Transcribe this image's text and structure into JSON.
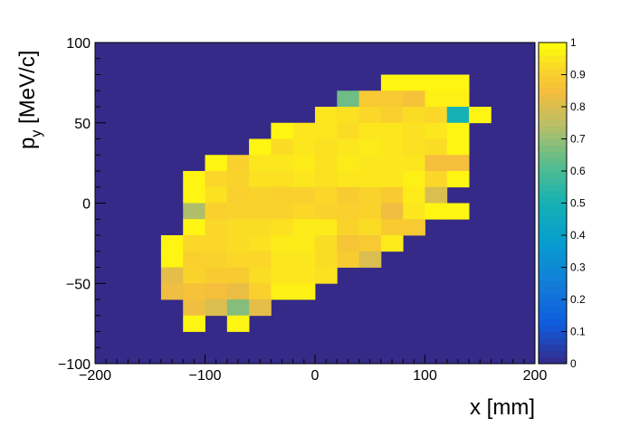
{
  "chart_data": {
    "type": "heatmap",
    "xlabel": "x [mm]",
    "ylabel_main": "p",
    "ylabel_sub": "y",
    "ylabel_rest": " [MeV/c]",
    "xlim": [
      -200,
      200
    ],
    "ylim": [
      -100,
      100
    ],
    "x_ticks": [
      -200,
      -100,
      0,
      100,
      200
    ],
    "x_tick_labels": [
      "−200",
      "−100",
      "0",
      "100",
      "200"
    ],
    "y_ticks": [
      -100,
      -50,
      0,
      50,
      100
    ],
    "y_tick_labels": [
      "−100",
      "−50",
      "0",
      "50",
      "100"
    ],
    "zlim": [
      0,
      1
    ],
    "z_ticks": [
      0,
      0.1,
      0.2,
      0.3,
      0.4,
      0.5,
      0.6,
      0.7,
      0.8,
      0.9,
      1
    ],
    "z_tick_labels": [
      "0",
      "0.1",
      "0.2",
      "0.3",
      "0.4",
      "0.5",
      "0.6",
      "0.7",
      "0.8",
      "0.9",
      "1"
    ],
    "bin_width_x": 20,
    "bin_width_y": 10,
    "background_value": 0,
    "colors": {
      "background": "#352a87",
      "frame": "#000000"
    },
    "cells": [
      {
        "x": 60,
        "y": 70,
        "v": 0.98
      },
      {
        "x": 80,
        "y": 70,
        "v": 0.98
      },
      {
        "x": 100,
        "y": 70,
        "v": 0.98
      },
      {
        "x": 120,
        "y": 70,
        "v": 0.98
      },
      {
        "x": 20,
        "y": 60,
        "v": 0.65
      },
      {
        "x": 40,
        "y": 60,
        "v": 0.88
      },
      {
        "x": 60,
        "y": 60,
        "v": 0.88
      },
      {
        "x": 80,
        "y": 60,
        "v": 0.86
      },
      {
        "x": 100,
        "y": 60,
        "v": 0.97
      },
      {
        "x": 120,
        "y": 60,
        "v": 0.97
      },
      {
        "x": 0,
        "y": 50,
        "v": 0.95
      },
      {
        "x": 20,
        "y": 50,
        "v": 0.94
      },
      {
        "x": 40,
        "y": 50,
        "v": 0.92
      },
      {
        "x": 60,
        "y": 50,
        "v": 0.9
      },
      {
        "x": 80,
        "y": 50,
        "v": 0.93
      },
      {
        "x": 100,
        "y": 50,
        "v": 0.92
      },
      {
        "x": 120,
        "y": 50,
        "v": 0.5
      },
      {
        "x": 140,
        "y": 50,
        "v": 0.98
      },
      {
        "x": -40,
        "y": 40,
        "v": 0.98
      },
      {
        "x": -20,
        "y": 40,
        "v": 0.95
      },
      {
        "x": 0,
        "y": 40,
        "v": 0.95
      },
      {
        "x": 20,
        "y": 40,
        "v": 0.93
      },
      {
        "x": 40,
        "y": 40,
        "v": 0.95
      },
      {
        "x": 60,
        "y": 40,
        "v": 0.95
      },
      {
        "x": 80,
        "y": 40,
        "v": 0.94
      },
      {
        "x": 100,
        "y": 40,
        "v": 0.95
      },
      {
        "x": 120,
        "y": 40,
        "v": 0.98
      },
      {
        "x": -60,
        "y": 30,
        "v": 0.98
      },
      {
        "x": -40,
        "y": 30,
        "v": 0.93
      },
      {
        "x": -20,
        "y": 30,
        "v": 0.95
      },
      {
        "x": 0,
        "y": 30,
        "v": 0.94
      },
      {
        "x": 20,
        "y": 30,
        "v": 0.95
      },
      {
        "x": 40,
        "y": 30,
        "v": 0.96
      },
      {
        "x": 60,
        "y": 30,
        "v": 0.95
      },
      {
        "x": 80,
        "y": 30,
        "v": 0.94
      },
      {
        "x": 100,
        "y": 30,
        "v": 0.93
      },
      {
        "x": 120,
        "y": 30,
        "v": 0.98
      },
      {
        "x": -100,
        "y": 20,
        "v": 0.98
      },
      {
        "x": -80,
        "y": 20,
        "v": 0.9
      },
      {
        "x": -60,
        "y": 20,
        "v": 0.95
      },
      {
        "x": -40,
        "y": 20,
        "v": 0.95
      },
      {
        "x": -20,
        "y": 20,
        "v": 0.96
      },
      {
        "x": 0,
        "y": 20,
        "v": 0.94
      },
      {
        "x": 20,
        "y": 20,
        "v": 0.96
      },
      {
        "x": 40,
        "y": 20,
        "v": 0.95
      },
      {
        "x": 60,
        "y": 20,
        "v": 0.95
      },
      {
        "x": 80,
        "y": 20,
        "v": 0.95
      },
      {
        "x": 100,
        "y": 20,
        "v": 0.85
      },
      {
        "x": 120,
        "y": 20,
        "v": 0.85
      },
      {
        "x": -120,
        "y": 10,
        "v": 0.98
      },
      {
        "x": -100,
        "y": 10,
        "v": 0.92
      },
      {
        "x": -80,
        "y": 10,
        "v": 0.91
      },
      {
        "x": -60,
        "y": 10,
        "v": 0.94
      },
      {
        "x": -40,
        "y": 10,
        "v": 0.94
      },
      {
        "x": -20,
        "y": 10,
        "v": 0.95
      },
      {
        "x": 0,
        "y": 10,
        "v": 0.94
      },
      {
        "x": 20,
        "y": 10,
        "v": 0.95
      },
      {
        "x": 40,
        "y": 10,
        "v": 0.95
      },
      {
        "x": 60,
        "y": 10,
        "v": 0.95
      },
      {
        "x": 80,
        "y": 10,
        "v": 0.97
      },
      {
        "x": 100,
        "y": 10,
        "v": 0.92
      },
      {
        "x": 120,
        "y": 10,
        "v": 0.98
      },
      {
        "x": -120,
        "y": 0,
        "v": 0.98
      },
      {
        "x": -100,
        "y": 0,
        "v": 0.94
      },
      {
        "x": -80,
        "y": 0,
        "v": 0.9
      },
      {
        "x": -60,
        "y": 0,
        "v": 0.91
      },
      {
        "x": -40,
        "y": 0,
        "v": 0.9
      },
      {
        "x": -20,
        "y": 0,
        "v": 0.9
      },
      {
        "x": 0,
        "y": 0,
        "v": 0.92
      },
      {
        "x": 20,
        "y": 0,
        "v": 0.89
      },
      {
        "x": 40,
        "y": 0,
        "v": 0.91
      },
      {
        "x": 60,
        "y": 0,
        "v": 0.89
      },
      {
        "x": 80,
        "y": 0,
        "v": 0.96
      },
      {
        "x": 100,
        "y": 0,
        "v": 0.8
      },
      {
        "x": -120,
        "y": -10,
        "v": 0.73
      },
      {
        "x": -100,
        "y": -10,
        "v": 0.9
      },
      {
        "x": -80,
        "y": -10,
        "v": 0.91
      },
      {
        "x": -60,
        "y": -10,
        "v": 0.91
      },
      {
        "x": -40,
        "y": -10,
        "v": 0.91
      },
      {
        "x": -20,
        "y": -10,
        "v": 0.92
      },
      {
        "x": 0,
        "y": -10,
        "v": 0.91
      },
      {
        "x": 20,
        "y": -10,
        "v": 0.9
      },
      {
        "x": 40,
        "y": -10,
        "v": 0.91
      },
      {
        "x": 60,
        "y": -10,
        "v": 0.84
      },
      {
        "x": 80,
        "y": -10,
        "v": 0.95
      },
      {
        "x": 100,
        "y": -10,
        "v": 0.98
      },
      {
        "x": 120,
        "y": -10,
        "v": 0.98
      },
      {
        "x": -120,
        "y": -20,
        "v": 0.98
      },
      {
        "x": -100,
        "y": -20,
        "v": 0.92
      },
      {
        "x": -80,
        "y": -20,
        "v": 0.93
      },
      {
        "x": -60,
        "y": -20,
        "v": 0.93
      },
      {
        "x": -40,
        "y": -20,
        "v": 0.94
      },
      {
        "x": -20,
        "y": -20,
        "v": 0.96
      },
      {
        "x": 0,
        "y": -20,
        "v": 0.96
      },
      {
        "x": 20,
        "y": -20,
        "v": 0.91
      },
      {
        "x": 40,
        "y": -20,
        "v": 0.93
      },
      {
        "x": 60,
        "y": -20,
        "v": 0.89
      },
      {
        "x": 80,
        "y": -20,
        "v": 0.88
      },
      {
        "x": -140,
        "y": -30,
        "v": 0.98
      },
      {
        "x": -120,
        "y": -30,
        "v": 0.92
      },
      {
        "x": -100,
        "y": -30,
        "v": 0.92
      },
      {
        "x": -80,
        "y": -30,
        "v": 0.93
      },
      {
        "x": -60,
        "y": -30,
        "v": 0.94
      },
      {
        "x": -40,
        "y": -30,
        "v": 0.96
      },
      {
        "x": -20,
        "y": -30,
        "v": 0.96
      },
      {
        "x": 0,
        "y": -30,
        "v": 0.93
      },
      {
        "x": 20,
        "y": -30,
        "v": 0.87
      },
      {
        "x": 40,
        "y": -30,
        "v": 0.88
      },
      {
        "x": 60,
        "y": -30,
        "v": 0.96
      },
      {
        "x": -140,
        "y": -40,
        "v": 0.98
      },
      {
        "x": -120,
        "y": -40,
        "v": 0.9
      },
      {
        "x": -100,
        "y": -40,
        "v": 0.91
      },
      {
        "x": -80,
        "y": -40,
        "v": 0.92
      },
      {
        "x": -60,
        "y": -40,
        "v": 0.92
      },
      {
        "x": -40,
        "y": -40,
        "v": 0.95
      },
      {
        "x": -20,
        "y": -40,
        "v": 0.95
      },
      {
        "x": 0,
        "y": -40,
        "v": 0.93
      },
      {
        "x": 20,
        "y": -40,
        "v": 0.89
      },
      {
        "x": 40,
        "y": -40,
        "v": 0.8
      },
      {
        "x": -140,
        "y": -50,
        "v": 0.82
      },
      {
        "x": -120,
        "y": -50,
        "v": 0.91
      },
      {
        "x": -100,
        "y": -50,
        "v": 0.89
      },
      {
        "x": -80,
        "y": -50,
        "v": 0.89
      },
      {
        "x": -60,
        "y": -50,
        "v": 0.93
      },
      {
        "x": -40,
        "y": -50,
        "v": 0.95
      },
      {
        "x": -20,
        "y": -50,
        "v": 0.95
      },
      {
        "x": 0,
        "y": -50,
        "v": 0.94
      },
      {
        "x": -140,
        "y": -60,
        "v": 0.84
      },
      {
        "x": -120,
        "y": -60,
        "v": 0.86
      },
      {
        "x": -100,
        "y": -60,
        "v": 0.85
      },
      {
        "x": -80,
        "y": -60,
        "v": 0.83
      },
      {
        "x": -60,
        "y": -60,
        "v": 0.9
      },
      {
        "x": -40,
        "y": -60,
        "v": 0.97
      },
      {
        "x": -20,
        "y": -60,
        "v": 0.97
      },
      {
        "x": -120,
        "y": -70,
        "v": 0.84
      },
      {
        "x": -100,
        "y": -70,
        "v": 0.8
      },
      {
        "x": -80,
        "y": -70,
        "v": 0.68
      },
      {
        "x": -60,
        "y": -70,
        "v": 0.82
      },
      {
        "x": -120,
        "y": -80,
        "v": 0.98
      },
      {
        "x": -80,
        "y": -80,
        "v": 0.98
      }
    ]
  }
}
